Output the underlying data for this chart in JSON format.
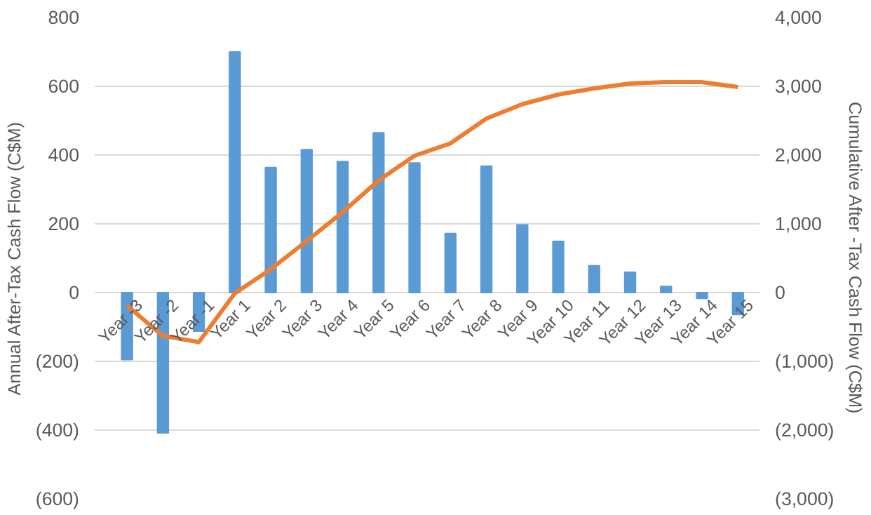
{
  "chart_data": {
    "type": "bar",
    "ylabel": "Annual After-Tax Cash Flow (C$M)",
    "y2label": "Cumulative After -Tax Cash Flow (C$M)",
    "categories": [
      "Year -3",
      "Year -2",
      "Year -1",
      "Year 1",
      "Year 2",
      "Year 3",
      "Year 4",
      "Year 5",
      "Year 6",
      "Year 7",
      "Year 8",
      "Year 9",
      "Year 10",
      "Year 11",
      "Year 12",
      "Year 13",
      "Year 14",
      "Year 15"
    ],
    "series": [
      {
        "color": "#5b9bd5",
        "values": [
          -195,
          -408,
          -112,
          700,
          364,
          416,
          381,
          465,
          377,
          172,
          368,
          197,
          149,
          78,
          59,
          18,
          -17,
          -64
        ]
      },
      {
        "type": "line",
        "axis": "y2",
        "color": "#ed7d31",
        "values": [
          -190,
          -630,
          -720,
          -10,
          340,
          750,
          1170,
          1630,
          1990,
          2170,
          2530,
          2740,
          2880,
          2970,
          3040,
          3060,
          3060,
          2990
        ]
      }
    ],
    "ylim": [
      -600,
      800
    ],
    "yticks": [
      {
        "value": -600,
        "label": "(600)"
      },
      {
        "value": -400,
        "label": "(400)"
      },
      {
        "value": -200,
        "label": "(200)"
      },
      0,
      200,
      400,
      600,
      800
    ],
    "y2lim": [
      -3000,
      4000
    ],
    "y2ticks": [
      {
        "value": -3000,
        "label": "(3,000)"
      },
      {
        "value": -2000,
        "label": "(2,000)"
      },
      {
        "value": -1000,
        "label": "(1,000)"
      },
      0,
      {
        "value": 1000,
        "label": "1,000"
      },
      {
        "value": 2000,
        "label": "2,000"
      },
      {
        "value": 3000,
        "label": "3,000"
      },
      {
        "value": 4000,
        "label": "4,000"
      }
    ],
    "grid": "y",
    "marker": "none",
    "line_style": "solid"
  }
}
